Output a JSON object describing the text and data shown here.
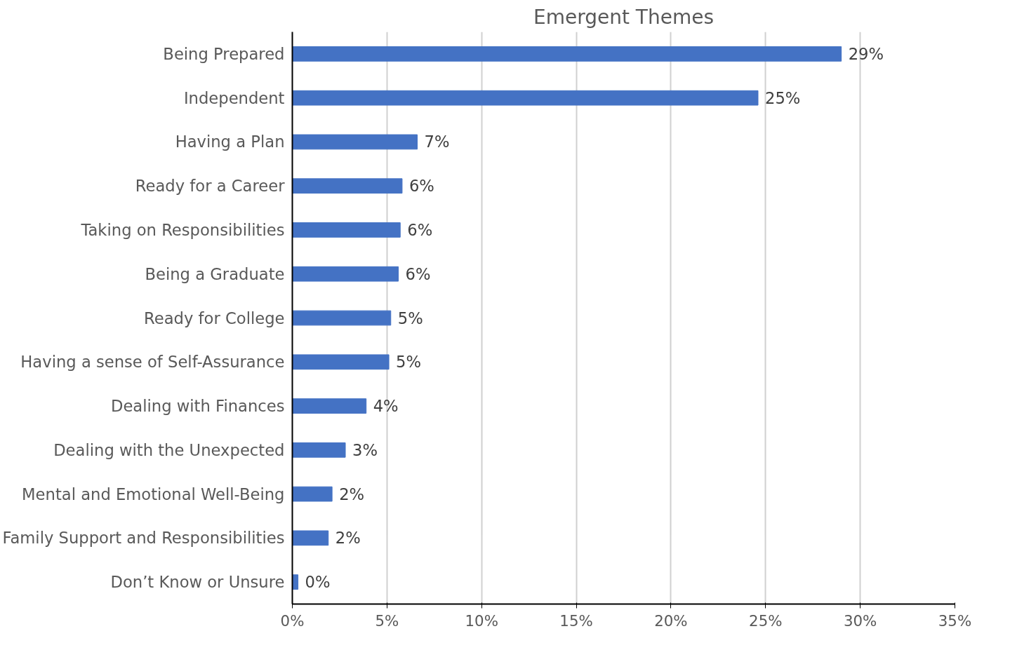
{
  "chart_data": {
    "type": "bar",
    "orientation": "horizontal",
    "title": "Emergent Themes",
    "categories": [
      "Being Prepared",
      "Independent",
      "Having a Plan",
      "Ready for a Career",
      "Taking on Responsibilities",
      "Being a Graduate",
      "Ready for College",
      "Having a sense of Self-Assurance",
      "Dealing with Finances",
      "Dealing with the Unexpected",
      "Mental and Emotional Well-Being",
      "Family Support and Responsibilities",
      "Don’t Know or Unsure"
    ],
    "values": [
      29.0,
      24.6,
      6.6,
      5.8,
      5.7,
      5.6,
      5.2,
      5.1,
      3.9,
      2.8,
      2.1,
      1.9,
      0.3
    ],
    "value_labels": [
      "29%",
      "25%",
      "7%",
      "6%",
      "6%",
      "6%",
      "5%",
      "5%",
      "4%",
      "3%",
      "2%",
      "2%",
      "0%"
    ],
    "color": "#4472c4",
    "xlim": [
      0,
      35
    ],
    "xticks": [
      {
        "value": 0,
        "label": "0%"
      },
      {
        "value": 5,
        "label": "5%"
      },
      {
        "value": 10,
        "label": "10%"
      },
      {
        "value": 15,
        "label": "15%"
      },
      {
        "value": 20,
        "label": "20%"
      },
      {
        "value": 25,
        "label": "25%"
      },
      {
        "value": 30,
        "label": "30%"
      },
      {
        "value": 35,
        "label": "35%"
      }
    ],
    "grid": "x"
  }
}
